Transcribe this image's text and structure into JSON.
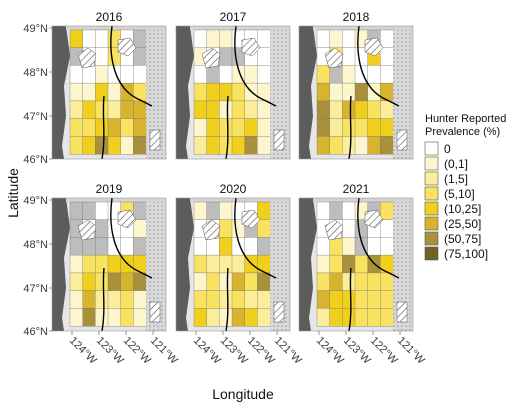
{
  "chart_data": {
    "type": "choropleth-map",
    "facets": [
      "2016",
      "2017",
      "2018",
      "2019",
      "2020",
      "2021"
    ],
    "xlabel": "Longitude",
    "ylabel": "Latitude",
    "x_ticks": [
      "124°W",
      "123°W",
      "122°W",
      "121°W"
    ],
    "y_ticks": [
      "49°N",
      "48°N",
      "47°N",
      "46°N"
    ],
    "xlim": [
      -125,
      -120.7
    ],
    "ylim": [
      45.5,
      49
    ],
    "legend": {
      "title_line1": "Hunter Reported",
      "title_line2": "Prevalence (%)",
      "placement": "right",
      "classes": [
        {
          "label": "0",
          "color": "#ffffff"
        },
        {
          "label": "(0,1]",
          "color": "#fdf6cc"
        },
        {
          "label": "(1,5]",
          "color": "#fbed99"
        },
        {
          "label": "(5,10]",
          "color": "#f9e25f"
        },
        {
          "label": "(10,25]",
          "color": "#f1cf1d"
        },
        {
          "label": "(25,50]",
          "color": "#d7b32e"
        },
        {
          "label": "(50,75]",
          "color": "#a8913a"
        },
        {
          "label": "(75,100]",
          "color": "#6f6225"
        }
      ]
    },
    "colors": {
      "ocean": "#5c5c5c",
      "no_data": "#bdbdbd",
      "outside": "#e6e6e6",
      "boundary": "#000000",
      "unit_border": "#777777"
    }
  }
}
